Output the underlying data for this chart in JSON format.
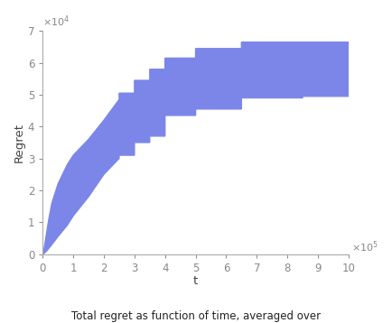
{
  "title": "Total regret as function of time, averaged over",
  "xlabel": "t",
  "ylabel": "Regret",
  "xlim": [
    0,
    1000000
  ],
  "ylim": [
    0,
    70000
  ],
  "xticks": [
    0,
    100000,
    200000,
    300000,
    400000,
    500000,
    600000,
    700000,
    800000,
    900000,
    1000000
  ],
  "xtick_labels": [
    "0",
    "1",
    "2",
    "3",
    "4",
    "5",
    "6",
    "7",
    "8",
    "9",
    "10"
  ],
  "yticks": [
    0,
    10000,
    20000,
    30000,
    40000,
    50000,
    60000,
    70000
  ],
  "ytick_labels": [
    "0",
    "1",
    "2",
    "3",
    "4",
    "5",
    "6",
    "7"
  ],
  "fill_color": "#7b86e8",
  "fill_alpha": 1.0,
  "background_color": "#ffffff",
  "upper_x": [
    0,
    3000,
    6000,
    10000,
    15000,
    20000,
    30000,
    50000,
    80000,
    100000,
    150000,
    200000,
    250000,
    250000,
    300000,
    300000,
    350000,
    350000,
    400000,
    400000,
    500000,
    500000,
    650000,
    650000,
    850000,
    850000,
    1000000
  ],
  "upper_y": [
    0,
    1000,
    2500,
    5000,
    8000,
    11000,
    16000,
    22000,
    28000,
    31000,
    36000,
    42000,
    48500,
    50500,
    50500,
    54500,
    54500,
    58000,
    58000,
    61500,
    61500,
    64500,
    64500,
    66500,
    66500,
    66500,
    66500
  ],
  "lower_x": [
    0,
    3000,
    6000,
    10000,
    15000,
    20000,
    30000,
    50000,
    80000,
    100000,
    150000,
    200000,
    250000,
    250000,
    300000,
    300000,
    350000,
    350000,
    400000,
    400000,
    500000,
    500000,
    650000,
    650000,
    850000,
    850000,
    1000000
  ],
  "lower_y": [
    0,
    100,
    300,
    700,
    1200,
    1800,
    3000,
    5500,
    9000,
    12000,
    18000,
    25000,
    30000,
    31000,
    31000,
    35000,
    35000,
    37000,
    37000,
    43500,
    43500,
    45500,
    45500,
    49000,
    49000,
    49500,
    49500
  ],
  "spine_color": "#aaaaaa",
  "tick_color": "#888888",
  "label_color": "#444444",
  "tick_fontsize": 8.5,
  "label_fontsize": 9.5,
  "exp_fontsize": 8.0
}
